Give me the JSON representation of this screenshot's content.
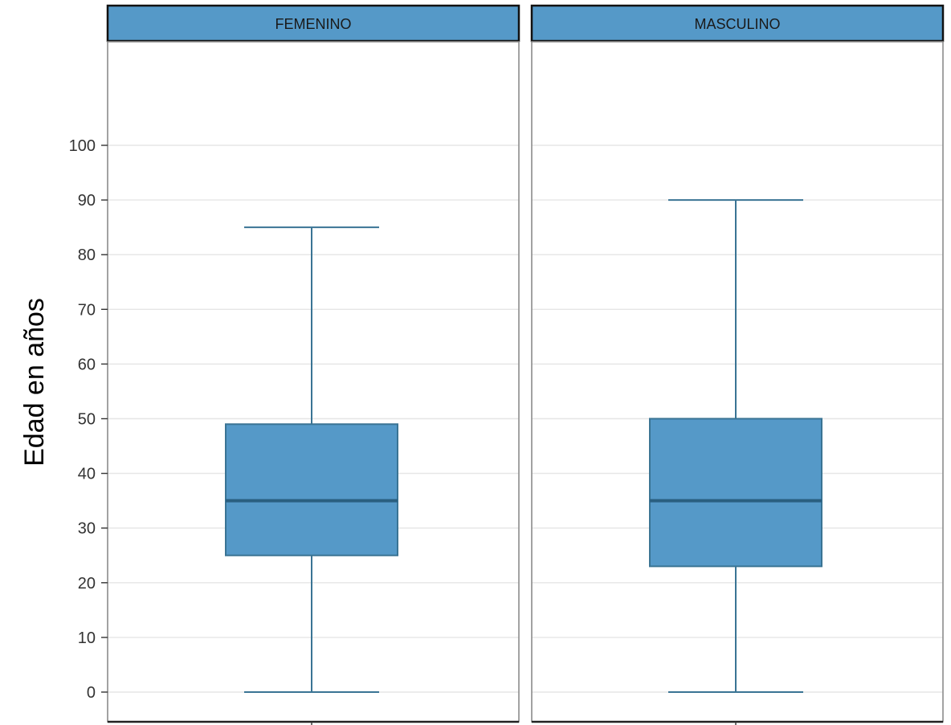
{
  "chart_data": {
    "type": "boxplot",
    "title": "",
    "xlabel": "",
    "ylabel": "Edad en años",
    "ylim": [
      -5,
      120
    ],
    "yticks": [
      0,
      10,
      20,
      30,
      40,
      50,
      60,
      70,
      80,
      90,
      100
    ],
    "grid": true,
    "colors": {
      "box_fill": "#5599c8",
      "box_stroke": "#3a7494",
      "median": "#2a5f80",
      "strip_fill": "#5599c8",
      "grid": "#e5e5e5"
    },
    "panels": [
      {
        "label": "FEMENINO",
        "min": 0,
        "q1": 25,
        "median": 35,
        "q3": 49,
        "max": 85
      },
      {
        "label": "MASCULINO",
        "min": 0,
        "q1": 23,
        "median": 35,
        "q3": 50,
        "max": 90
      }
    ]
  }
}
